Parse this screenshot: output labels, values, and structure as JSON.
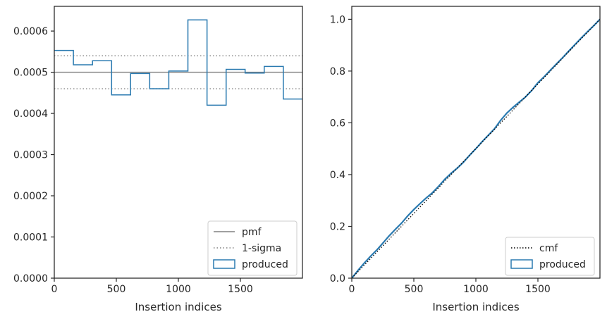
{
  "chart_data": [
    {
      "type": "step",
      "xlabel": "Insertion indices",
      "ylabel": "",
      "xlim": [
        0,
        2000
      ],
      "ylim": [
        0,
        0.00066
      ],
      "xticks": [
        "0",
        "500",
        "1000",
        "1500"
      ],
      "yticks": [
        "0.0000",
        "0.0001",
        "0.0002",
        "0.0003",
        "0.0004",
        "0.0005",
        "0.0006"
      ],
      "legend_position": "lower-right",
      "series": [
        {
          "name": "pmf",
          "style": "solid",
          "color": "#808080",
          "y": 0.0005
        },
        {
          "name": "1-sigma",
          "style": "dotted",
          "color": "#808080",
          "y": [
            0.00046,
            0.00054
          ]
        },
        {
          "name": "produced",
          "style": "step",
          "color": "#2a7ab0",
          "bin_edges": [
            0,
            154,
            308,
            462,
            615,
            769,
            923,
            1077,
            1231,
            1385,
            1538,
            1692,
            1846,
            2000
          ],
          "values": [
            0.000553,
            0.000518,
            0.000528,
            0.000445,
            0.000497,
            0.00046,
            0.000503,
            0.000627,
            0.00042,
            0.000507,
            0.000498,
            0.000514,
            0.000435
          ]
        }
      ]
    },
    {
      "type": "line",
      "xlabel": "Insertion indices",
      "ylabel": "",
      "xlim": [
        0,
        2000
      ],
      "ylim": [
        0,
        1.05
      ],
      "xticks": [
        "0",
        "500",
        "1000",
        "1500"
      ],
      "yticks": [
        "0.0",
        "0.2",
        "0.4",
        "0.6",
        "0.8",
        "1.0"
      ],
      "legend_position": "lower-right",
      "series": [
        {
          "name": "cmf",
          "style": "dotted",
          "color": "#000000",
          "x": [
            0,
            2000
          ],
          "y": [
            0,
            1
          ]
        },
        {
          "name": "produced",
          "style": "solid",
          "color": "#2a7ab0",
          "x": [
            0,
            50,
            100,
            150,
            200,
            250,
            300,
            350,
            400,
            450,
            500,
            550,
            600,
            650,
            700,
            750,
            800,
            850,
            900,
            950,
            1000,
            1050,
            1100,
            1150,
            1200,
            1250,
            1300,
            1350,
            1400,
            1450,
            1500,
            1550,
            1600,
            1650,
            1700,
            1750,
            1800,
            1850,
            1900,
            1950,
            2000
          ],
          "y": [
            0,
            0.03,
            0.058,
            0.084,
            0.108,
            0.135,
            0.163,
            0.188,
            0.212,
            0.24,
            0.265,
            0.288,
            0.31,
            0.33,
            0.355,
            0.382,
            0.405,
            0.425,
            0.448,
            0.475,
            0.5,
            0.527,
            0.552,
            0.577,
            0.61,
            0.638,
            0.66,
            0.68,
            0.7,
            0.725,
            0.755,
            0.778,
            0.803,
            0.828,
            0.852,
            0.878,
            0.903,
            0.928,
            0.952,
            0.975,
            1.0
          ]
        }
      ]
    }
  ]
}
